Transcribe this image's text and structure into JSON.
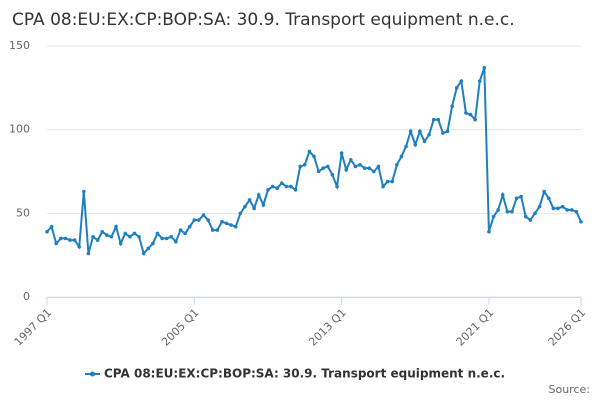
{
  "chart_data": {
    "type": "line",
    "title": "CPA 08:EU:EX:CP:BOP:SA: 30.9. Transport equipment n.e.c.",
    "source": "Source:",
    "categories": [
      "1997 Q1",
      null,
      null,
      null,
      null,
      null,
      null,
      null,
      null,
      null,
      null,
      null,
      null,
      null,
      null,
      null,
      null,
      null,
      null,
      null,
      null,
      null,
      null,
      null,
      null,
      null,
      null,
      null,
      null,
      null,
      null,
      null,
      "2005 Q1",
      null,
      null,
      null,
      null,
      null,
      null,
      null,
      null,
      null,
      null,
      null,
      null,
      null,
      null,
      null,
      null,
      null,
      null,
      null,
      null,
      null,
      null,
      null,
      null,
      null,
      null,
      null,
      null,
      null,
      null,
      null,
      "2013 Q1",
      null,
      null,
      null,
      null,
      null,
      null,
      null,
      null,
      null,
      null,
      null,
      null,
      null,
      null,
      null,
      null,
      null,
      null,
      null,
      null,
      null,
      null,
      null,
      null,
      null,
      null,
      null,
      null,
      null,
      null,
      null,
      "2021 Q1",
      null,
      null,
      null,
      null,
      null,
      null,
      null,
      null,
      null,
      null,
      null,
      null,
      null,
      null,
      null,
      null,
      null,
      null,
      null,
      "2026 Q1"
    ],
    "series": [
      {
        "name": "CPA 08:EU:EX:CP:BOP:SA: 30.9. Transport equipment n.e.c.",
        "color": "#1f7fbf",
        "values": [
          39,
          42,
          32,
          35,
          35,
          34,
          34,
          30,
          63,
          26,
          36,
          34,
          39,
          37,
          36,
          42,
          32,
          38,
          36,
          38,
          36,
          26,
          29,
          32,
          38,
          35,
          35,
          36,
          33,
          40,
          38,
          42,
          46,
          46,
          49,
          46,
          40,
          40,
          45,
          44,
          43,
          42,
          50,
          54,
          58,
          53,
          61,
          55,
          64,
          66,
          65,
          68,
          66,
          66,
          64,
          78,
          79,
          87,
          84,
          75,
          77,
          78,
          73,
          66,
          86,
          76,
          82,
          78,
          79,
          77,
          77,
          75,
          78,
          66,
          69,
          69,
          79,
          84,
          90,
          99,
          91,
          99,
          93,
          97,
          106,
          106,
          98,
          99,
          114,
          125,
          129,
          110,
          109,
          106,
          129,
          137,
          39,
          48,
          52,
          61,
          51,
          51,
          59,
          60,
          48,
          46,
          50,
          54,
          63,
          59,
          53,
          53,
          54,
          52,
          52,
          51,
          45
        ]
      }
    ],
    "ylim": [
      0,
      150
    ],
    "yticks": [
      0,
      50,
      100,
      150
    ],
    "grid": true
  }
}
